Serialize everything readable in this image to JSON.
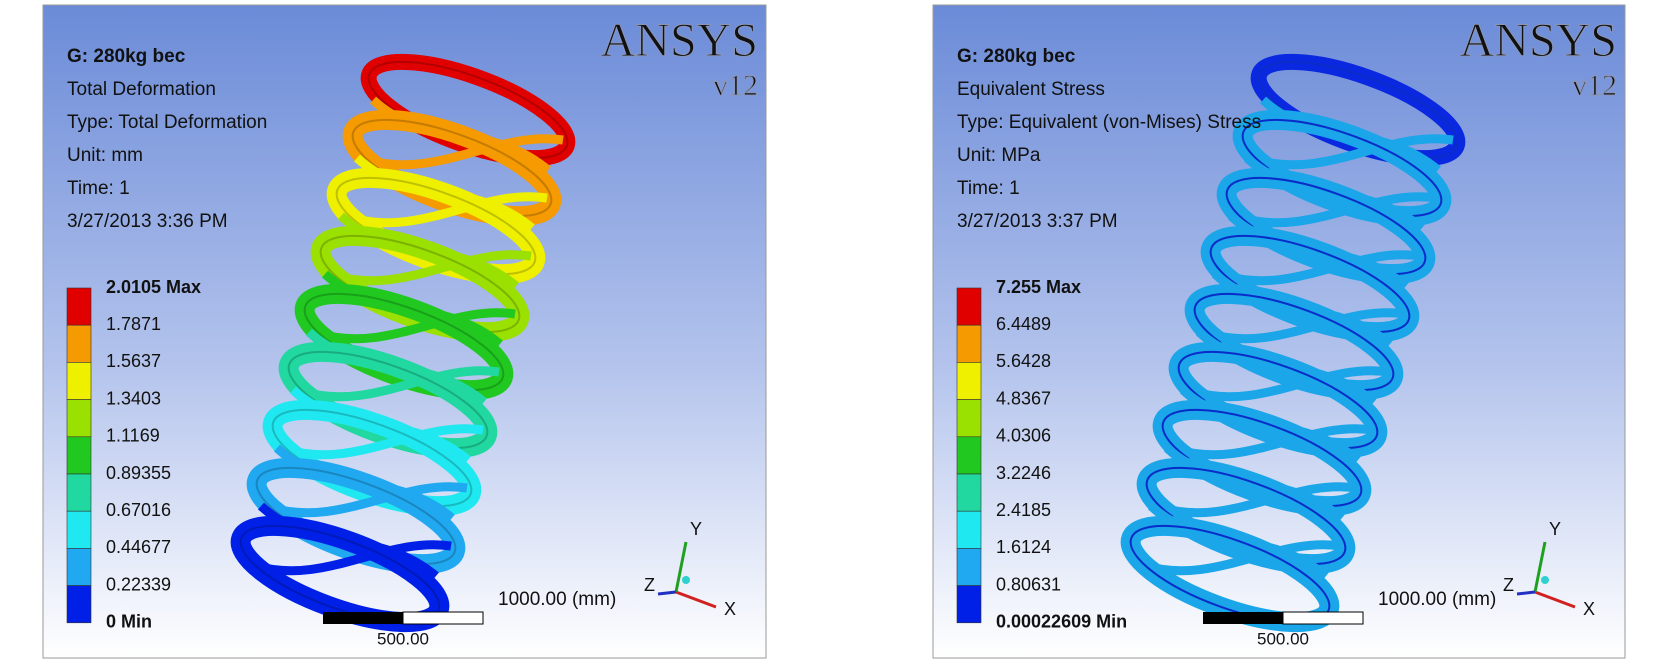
{
  "panels": [
    {
      "header": [
        "G: 280kg bec",
        "Total Deformation",
        "Type: Total Deformation",
        "Unit: mm",
        "Time: 1",
        "3/27/2013 3:36 PM"
      ],
      "legend": [
        "2.0105 Max",
        "1.7871",
        "1.5637",
        "1.3403",
        "1.1169",
        "0.89355",
        "0.67016",
        "0.44677",
        "0.22339",
        "0 Min"
      ],
      "scale": {
        "length": "1000.00 (mm)",
        "mid": "500.00"
      },
      "logo": {
        "brand": "ANSYS",
        "version": "v12"
      },
      "axes": {
        "x": "X",
        "y": "Y",
        "z": "Z"
      }
    },
    {
      "header": [
        "G: 280kg bec",
        "Equivalent Stress",
        "Type: Equivalent (von-Mises) Stress",
        "Unit: MPa",
        "Time: 1",
        "3/27/2013 3:37 PM"
      ],
      "legend": [
        "7.255 Max",
        "6.4489",
        "5.6428",
        "4.8367",
        "4.0306",
        "3.2246",
        "2.4185",
        "1.6124",
        "0.80631",
        "0.00022609 Min"
      ],
      "scale": {
        "length": "1000.00 (mm)",
        "mid": "500.00"
      },
      "logo": {
        "brand": "ANSYS",
        "version": "v12"
      },
      "axes": {
        "x": "X",
        "y": "Y",
        "z": "Z"
      }
    }
  ]
}
